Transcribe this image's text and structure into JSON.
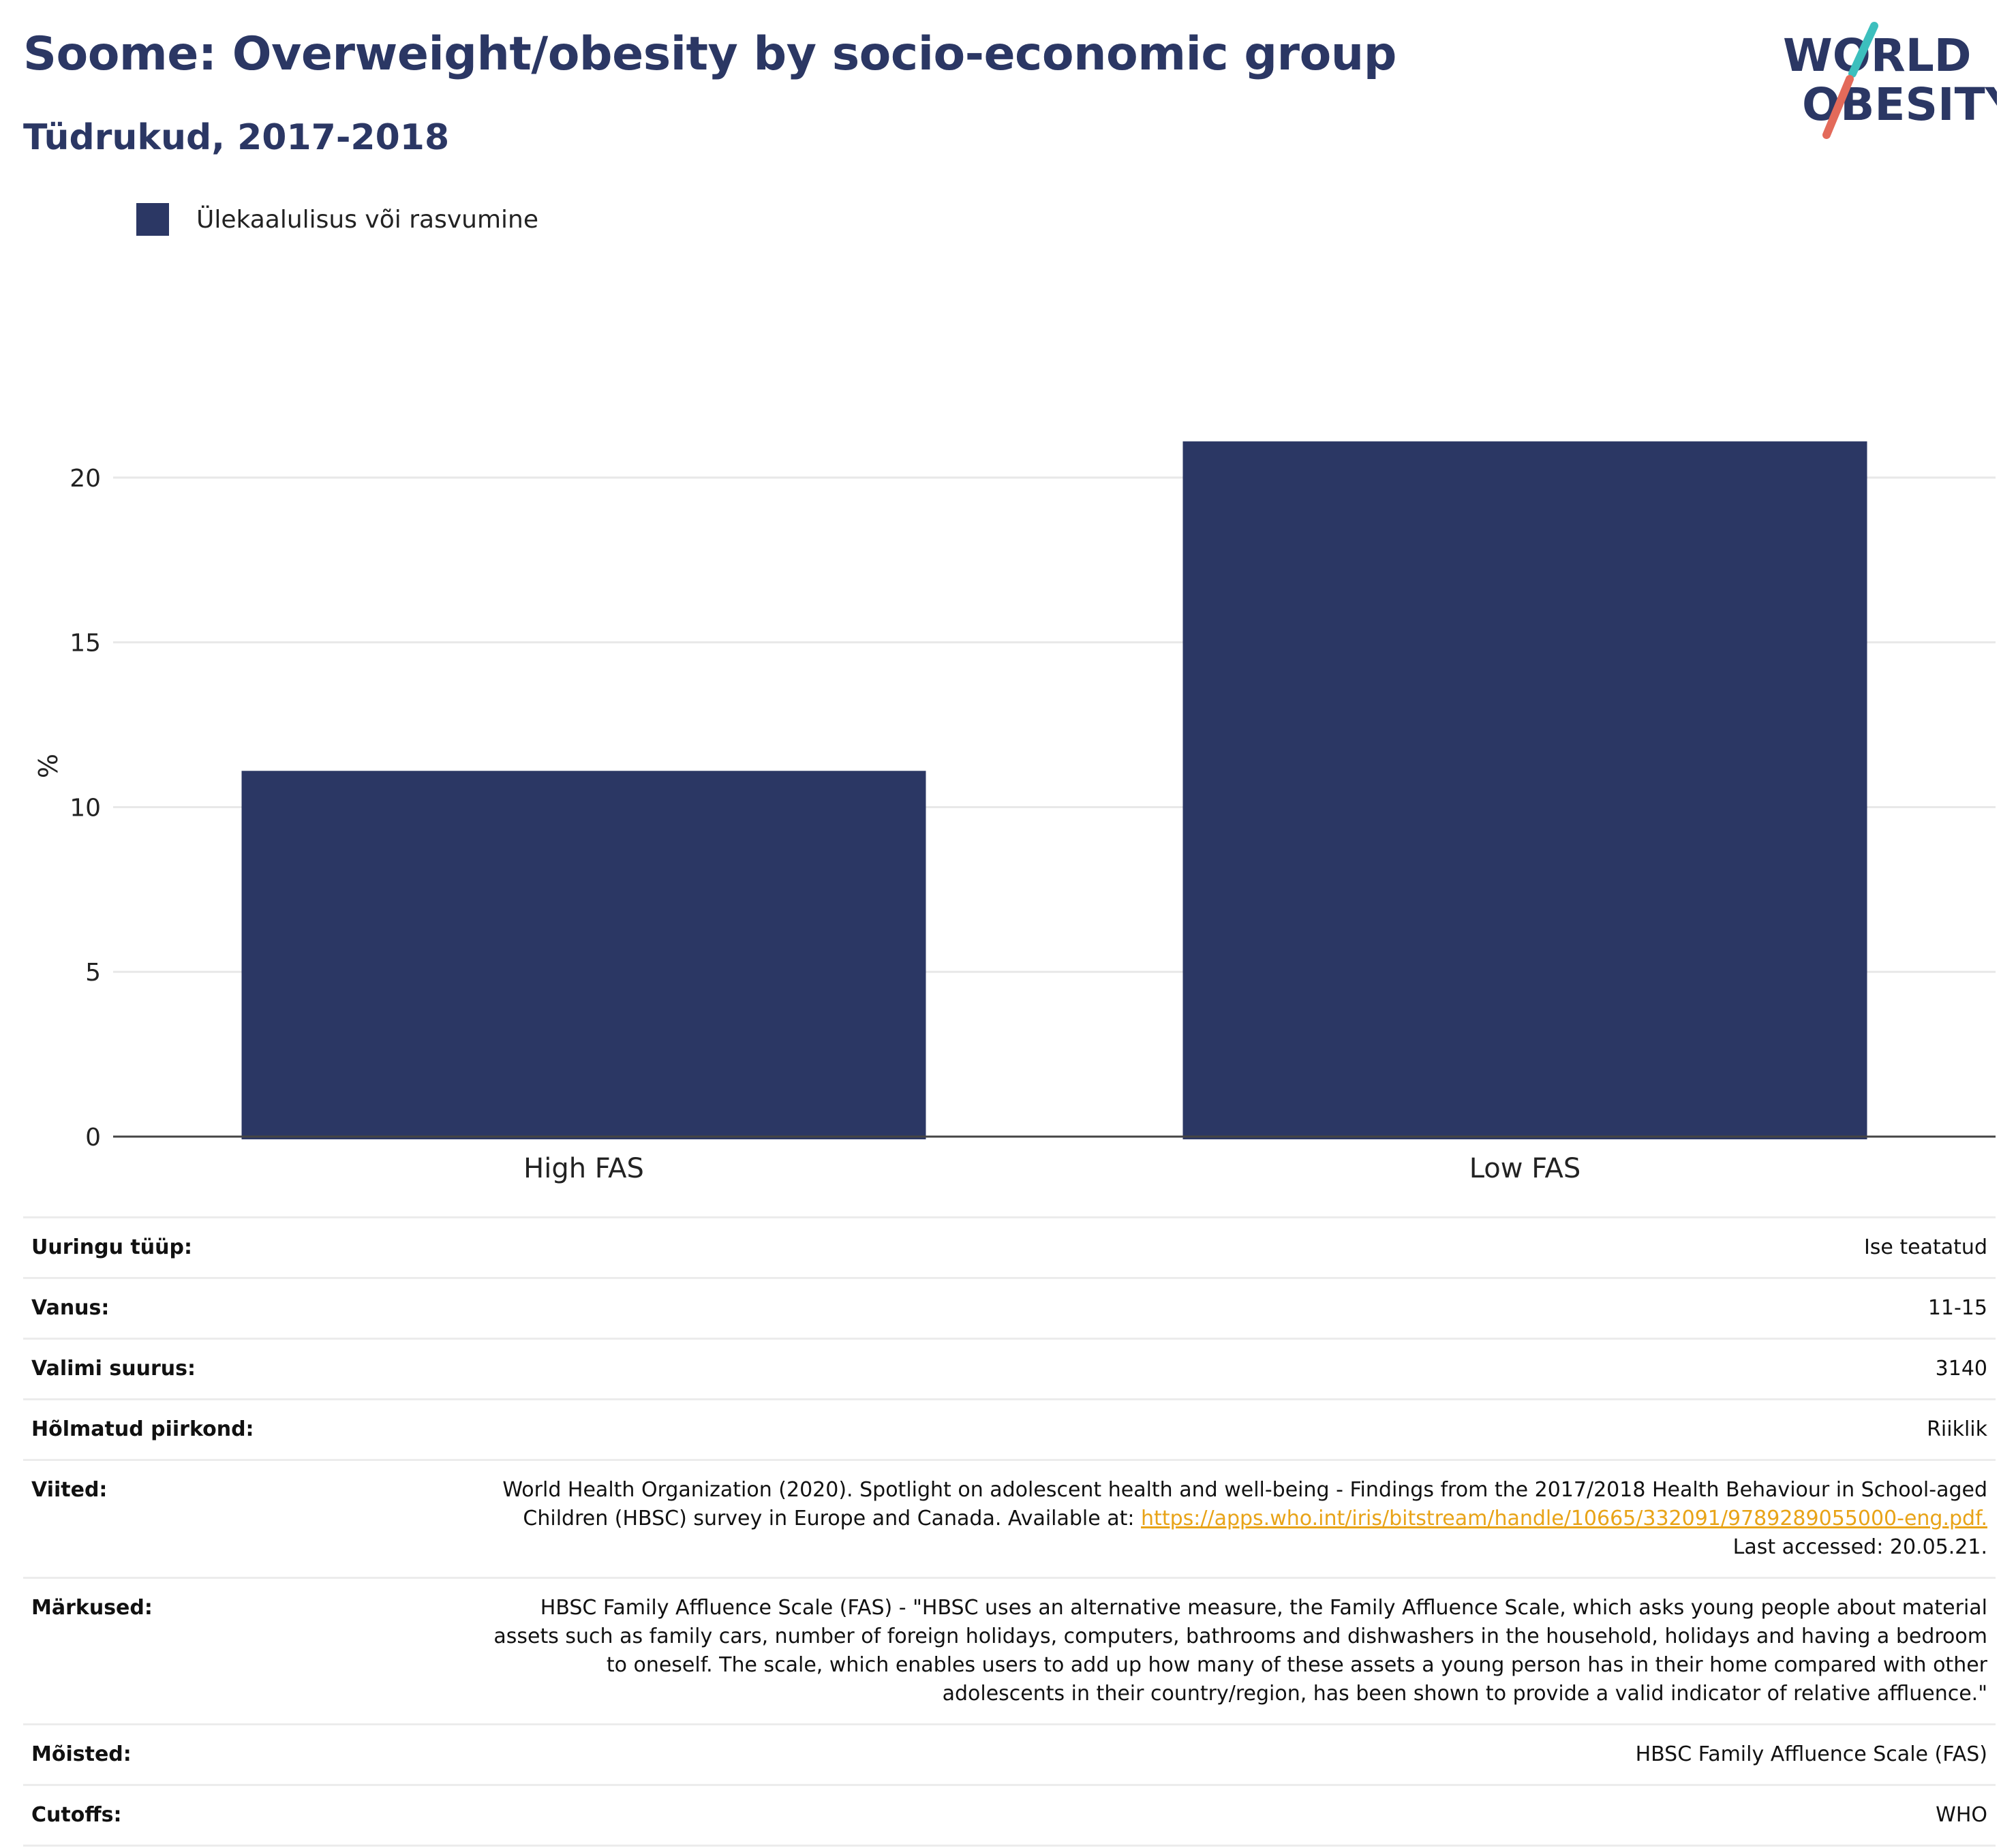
{
  "header": {
    "title": "Soome: Overweight/obesity by socio-economic group",
    "subtitle": "Tüdrukud, 2017-2018"
  },
  "logo": {
    "line1": "WORLD",
    "line2": "OBESITY",
    "colors": {
      "text": "#2b3764",
      "slash_top": "#3cbfbd",
      "slash_bottom": "#e36a5a"
    }
  },
  "colors": {
    "bar": "#2b3764",
    "grid": "#e8e8e8",
    "axis": "#444444",
    "link": "#e8a317"
  },
  "chart_data": {
    "type": "bar",
    "categories": [
      "High FAS",
      "Low FAS"
    ],
    "series": [
      {
        "name": "Ülekaalulisus või rasvumine",
        "values": [
          11.1,
          21.1
        ]
      }
    ],
    "ylabel": "%",
    "ylim": [
      0,
      22.5
    ],
    "yticks": [
      0,
      5,
      10,
      15,
      20
    ],
    "grid": true,
    "legend_position": "top-left"
  },
  "metadata": {
    "rows": [
      {
        "key": "Uuringu tüüp:",
        "value": "Ise teatatud"
      },
      {
        "key": "Vanus:",
        "value": "11-15"
      },
      {
        "key": "Valimi suurus:",
        "value": "3140"
      },
      {
        "key": "Hõlmatud piirkond:",
        "value": "Riiklik"
      },
      {
        "key": "Viited:",
        "value_pre": "World Health Organization (2020). Spotlight on adolescent health and well-being - Findings from the 2017/2018 Health Behaviour in School-aged Children (HBSC) survey in Europe and Canada. Available at: ",
        "link": "https://apps.who.int/iris/bitstream/handle/10665/332091/9789289055000-eng.pdf.",
        "value_post": " Last accessed: 20.05.21."
      },
      {
        "key": "Märkused:",
        "value": "HBSC Family Affluence Scale (FAS) - \"HBSC uses an alternative measure, the Family Affluence Scale, which asks young people about material assets such as family cars, number of foreign holidays, computers, bathrooms and dishwashers in the household, holidays and having a bedroom to oneself. The scale, which enables users to add up how many of these assets a young person has in their home compared with other adolescents in their country/region, has been shown to provide a valid indicator of relative affluence.\""
      },
      {
        "key": "Mõisted:",
        "value": "HBSC Family Affluence Scale (FAS)"
      },
      {
        "key": "Cutoffs:",
        "value": "WHO"
      }
    ]
  }
}
